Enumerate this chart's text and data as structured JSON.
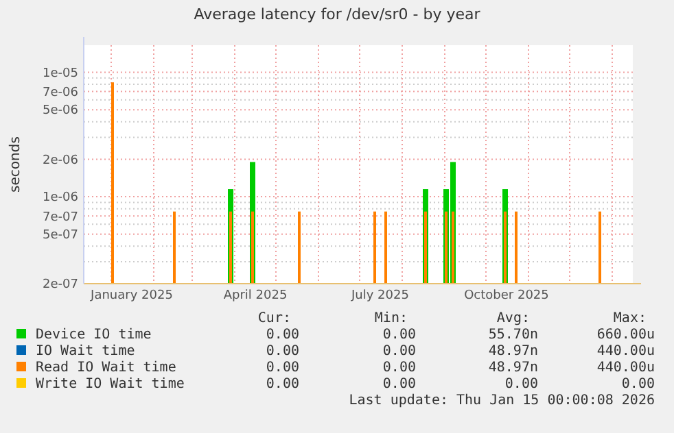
{
  "chart_data": {
    "type": "bar",
    "title": "Average latency for /dev/sr0 - by year",
    "ylabel": "seconds",
    "log": true,
    "grid": true,
    "legend": "bottom",
    "x": [
      "2025-01-02",
      "2025-02-16",
      "2025-03-29",
      "2025-04-14",
      "2025-05-18",
      "2025-07-12",
      "2025-07-20",
      "2025-08-18",
      "2025-09-02",
      "2025-09-07",
      "2025-10-15",
      "2025-10-23",
      "2025-12-23"
    ],
    "xlim": [
      "2024-12-12",
      "2026-01-16"
    ],
    "xticks": [
      {
        "value": "2025-01-01",
        "label": null
      },
      {
        "value": "2025-02-01",
        "label": null
      },
      {
        "value": "2025-03-01",
        "label": null
      },
      {
        "value": "2025-04-01",
        "label": null
      },
      {
        "value": "2025-05-01",
        "label": null
      },
      {
        "value": "2025-06-01",
        "label": null
      },
      {
        "value": "2025-07-01",
        "label": null
      },
      {
        "value": "2025-08-01",
        "label": null
      },
      {
        "value": "2025-09-01",
        "label": null
      },
      {
        "value": "2025-10-01",
        "label": null
      },
      {
        "value": "2025-11-01",
        "label": null
      },
      {
        "value": "2025-12-01",
        "label": null
      },
      {
        "value": "2026-01-01",
        "label": null
      },
      {
        "value": "2025-01-16",
        "label": "January 2025"
      },
      {
        "value": "2025-04-16",
        "label": "April 2025"
      },
      {
        "value": "2025-07-16",
        "label": "July 2025"
      },
      {
        "value": "2025-10-16",
        "label": "October 2025"
      }
    ],
    "ylim": [
      2e-07,
      1.65e-05
    ],
    "yticks": [
      {
        "value": 2e-07,
        "label": "2e-07"
      },
      {
        "value": 3e-07,
        "label": null
      },
      {
        "value": 4e-07,
        "label": null
      },
      {
        "value": 5e-07,
        "label": "5e-07"
      },
      {
        "value": 6e-07,
        "label": null
      },
      {
        "value": 7e-07,
        "label": "7e-07"
      },
      {
        "value": 8e-07,
        "label": null
      },
      {
        "value": 9e-07,
        "label": null
      },
      {
        "value": 1e-06,
        "label": "1e-06"
      },
      {
        "value": 2e-06,
        "label": "2e-06"
      },
      {
        "value": 3e-06,
        "label": null
      },
      {
        "value": 4e-06,
        "label": null
      },
      {
        "value": 5e-06,
        "label": "5e-06"
      },
      {
        "value": 6e-06,
        "label": null
      },
      {
        "value": 7e-06,
        "label": "7e-06"
      },
      {
        "value": 8e-06,
        "label": null
      },
      {
        "value": 9e-06,
        "label": null
      },
      {
        "value": 1e-05,
        "label": "1e-05"
      }
    ],
    "series": [
      {
        "name": "Device IO time",
        "color": "#00cc00",
        "values": [
          null,
          null,
          1.15e-06,
          1.9e-06,
          null,
          null,
          null,
          1.15e-06,
          1.15e-06,
          1.9e-06,
          1.15e-06,
          null,
          null
        ]
      },
      {
        "name": "IO Wait time",
        "color": "#0066b3",
        "values": [
          null,
          null,
          null,
          null,
          null,
          null,
          null,
          null,
          null,
          null,
          null,
          null,
          null
        ]
      },
      {
        "name": "Read IO Wait time",
        "color": "#ff8000",
        "values": [
          8.3e-06,
          7.6e-07,
          7.6e-07,
          7.6e-07,
          7.6e-07,
          7.6e-07,
          7.6e-07,
          7.6e-07,
          7.6e-07,
          7.6e-07,
          7.6e-07,
          7.6e-07,
          7.6e-07
        ]
      },
      {
        "name": "Write IO Wait time",
        "color": "#ffcc00",
        "values": [
          null,
          null,
          null,
          null,
          null,
          null,
          null,
          null,
          null,
          null,
          null,
          null,
          null
        ]
      }
    ],
    "annotations": [
      "Cur:",
      "Min:",
      "Avg:",
      "Max:",
      "0.00",
      "0.00",
      "55.70n",
      "660.00u",
      "0.00",
      "0.00",
      "48.97n",
      "440.00u",
      "0.00",
      "0.00",
      "48.97n",
      "440.00u",
      "0.00",
      "0.00",
      "0.00",
      "0.00",
      "Last update: Thu Jan 15 00:00:08 2026"
    ]
  }
}
